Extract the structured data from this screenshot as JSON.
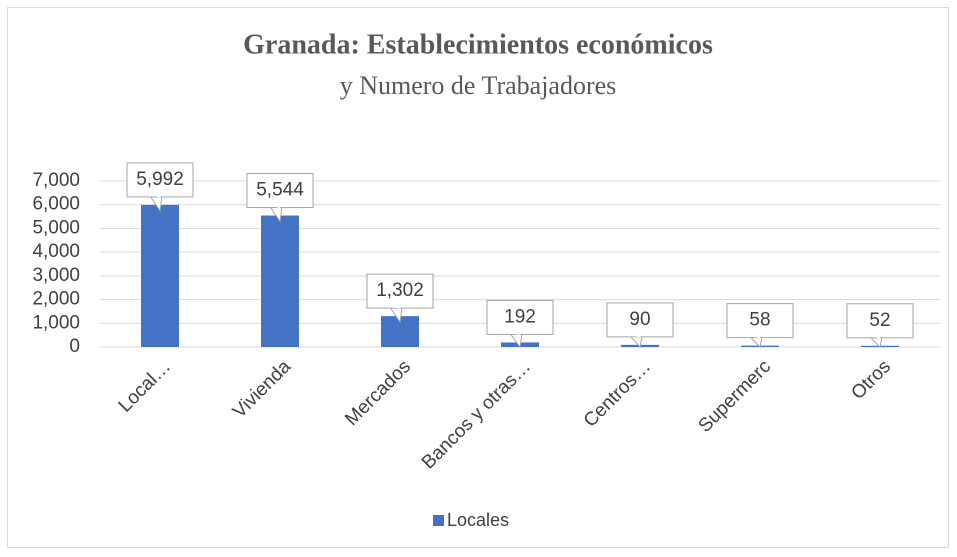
{
  "chart_data": {
    "type": "bar",
    "title": "Granada: Establecimientos económicos",
    "subtitle": "y Numero de Trabajadores",
    "categories": [
      "Local…",
      "Vivienda",
      "Mercados",
      "Bancos y otras…",
      "Centros…",
      "Supermerc",
      "Otros"
    ],
    "series": [
      {
        "name": "Locales",
        "color": "#4472c4",
        "values": [
          5992,
          5544,
          1302,
          192,
          90,
          58,
          52
        ],
        "value_labels": [
          "5,992",
          "5,544",
          "1,302",
          "192",
          "90",
          "58",
          "52"
        ]
      }
    ],
    "ylim": [
      0,
      7000
    ],
    "yticks": [
      0,
      {
        "value": 1000,
        "label": "1,000"
      },
      {
        "value": 2000,
        "label": "2,000"
      },
      {
        "value": 3000,
        "label": "3,000"
      },
      {
        "value": 4000,
        "label": "4,000"
      },
      {
        "value": 5000,
        "label": "5,000"
      },
      {
        "value": 6000,
        "label": "6,000"
      },
      {
        "value": 7000,
        "label": "7,000"
      }
    ],
    "grid": true,
    "legend": "bottom"
  }
}
